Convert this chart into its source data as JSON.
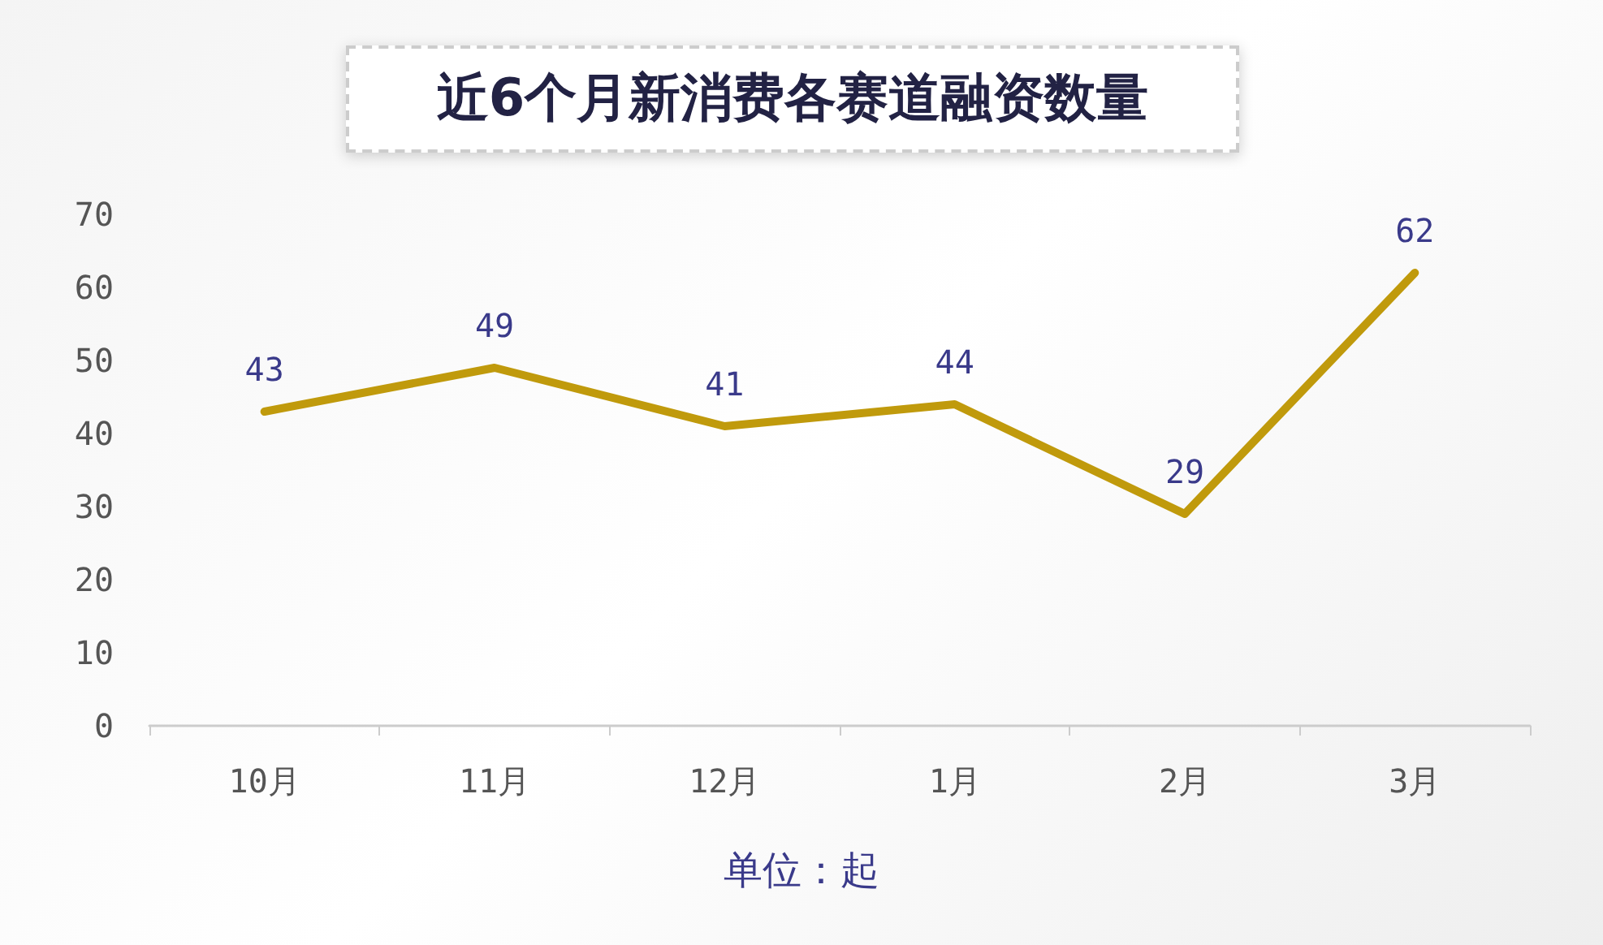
{
  "chart_data": {
    "type": "line",
    "title": "近6个月新消费各赛道融资数量",
    "categories": [
      "10月",
      "11月",
      "12月",
      "1月",
      "2月",
      "3月"
    ],
    "values": [
      43,
      49,
      41,
      44,
      29,
      62
    ],
    "color": "#c09a0c",
    "ylim": [
      0,
      70
    ],
    "yticks": [
      0,
      10,
      20,
      30,
      40,
      50,
      60,
      70
    ],
    "grid": false,
    "data_labels": true,
    "marker": "none",
    "line_style": "solid",
    "annotations": [
      "单位：起"
    ]
  }
}
